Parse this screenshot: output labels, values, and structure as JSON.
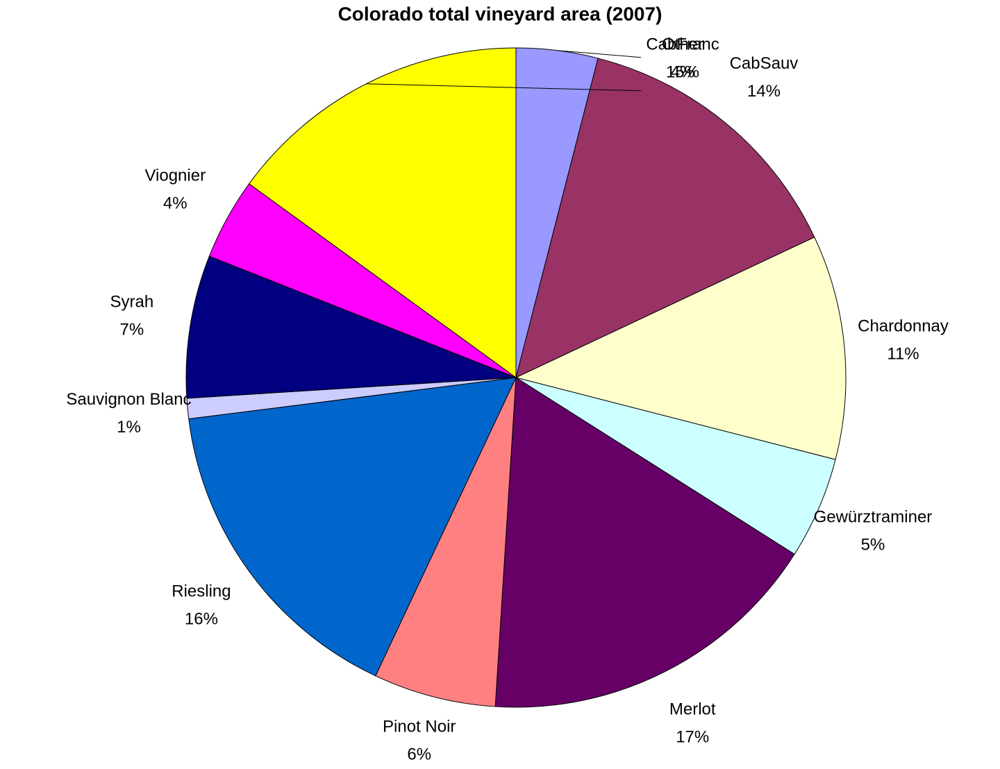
{
  "chart_data": {
    "type": "pie",
    "title": "Colorado total vineyard area (2007)",
    "categories": [
      "CabFranc",
      "CabSauv",
      "Chardonnay",
      "Gewürztraminer",
      "Merlot",
      "Pinot Noir",
      "Riesling",
      "Sauvignon Blanc",
      "Syrah",
      "Viognier",
      "Other"
    ],
    "values": [
      4,
      14,
      11,
      5,
      17,
      6,
      16,
      1,
      7,
      4,
      15
    ],
    "value_labels": [
      "4%",
      "14%",
      "11%",
      "5%",
      "17%",
      "6%",
      "16%",
      "1%",
      "7%",
      "4%",
      "15%"
    ],
    "colors": [
      "#9999ff",
      "#993366",
      "#ffffcc",
      "#ccffff",
      "#660066",
      "#ff8080",
      "#0066cc",
      "#ccccff",
      "#000080",
      "#ff00ff",
      "#ffff00"
    ]
  }
}
